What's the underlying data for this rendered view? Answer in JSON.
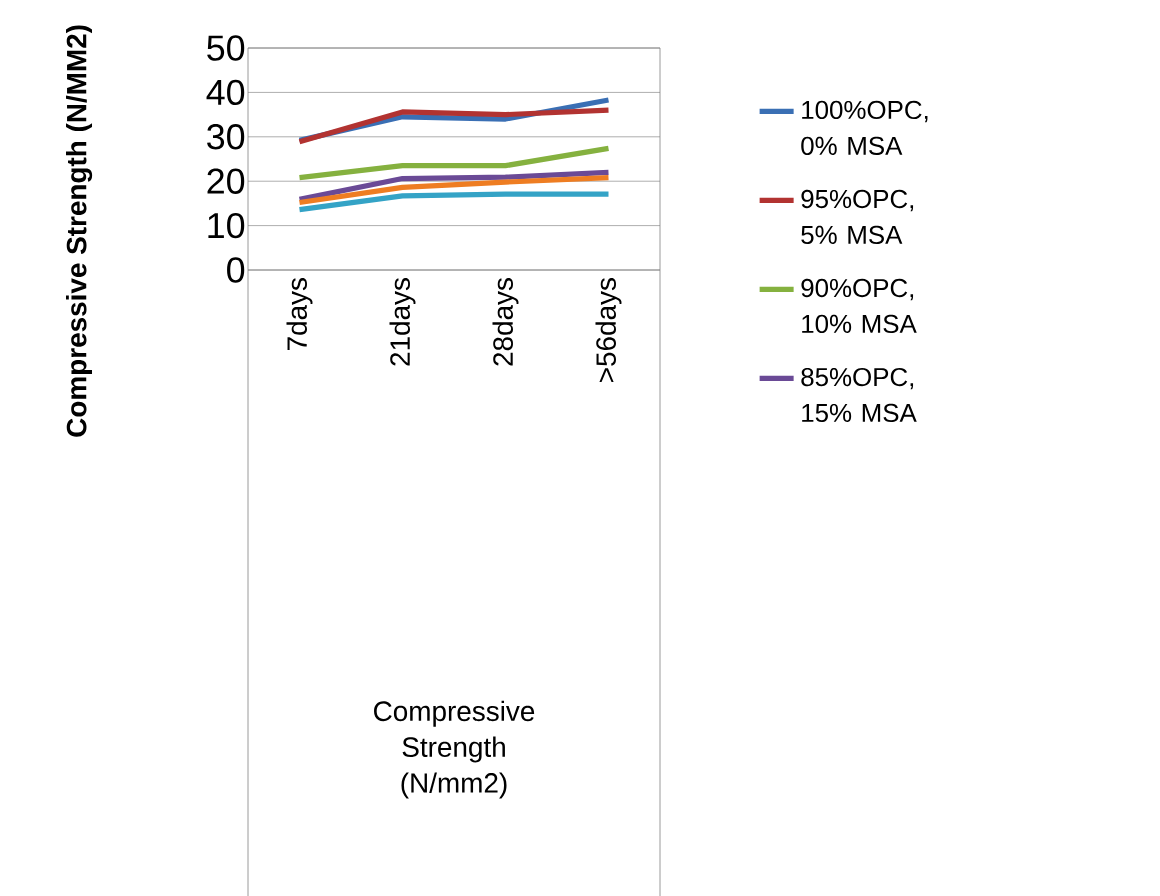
{
  "chart_data": {
    "type": "line",
    "ylabel": "Compressive Strength (N/MM2)",
    "annotations": [
      "Compressive Strength (N/mm2)"
    ],
    "categories": [
      "7days",
      "21days",
      "28days",
      ">56days"
    ],
    "series": [
      {
        "name": "100%OPC, 0% MSA",
        "color": "#3a6fb4",
        "values": [
          29.2,
          34.5,
          34,
          38.3
        ]
      },
      {
        "name": "95%OPC, 5% MSA",
        "color": "#b23331",
        "values": [
          28.9,
          35.6,
          35,
          36
        ]
      },
      {
        "name": "90%OPC, 10% MSA",
        "color": "#85b13f",
        "values": [
          20.8,
          23.5,
          23.5,
          27.4
        ]
      },
      {
        "name": "85%OPC, 15% MSA",
        "color": "#6a4a96",
        "values": [
          15.9,
          20.6,
          20.9,
          22
        ]
      },
      {
        "color": "#ee7d22",
        "values": [
          15.2,
          18.6,
          19.8,
          20.8
        ]
      },
      {
        "color": "#34a3c6",
        "values": [
          13.6,
          16.7,
          17.1,
          17.1
        ]
      }
    ],
    "ylim": [
      0,
      50
    ],
    "yticks": [
      0,
      10,
      20,
      30,
      40,
      50
    ],
    "grid": "y",
    "legend": "right",
    "marker": "none",
    "line_style": "solid"
  }
}
